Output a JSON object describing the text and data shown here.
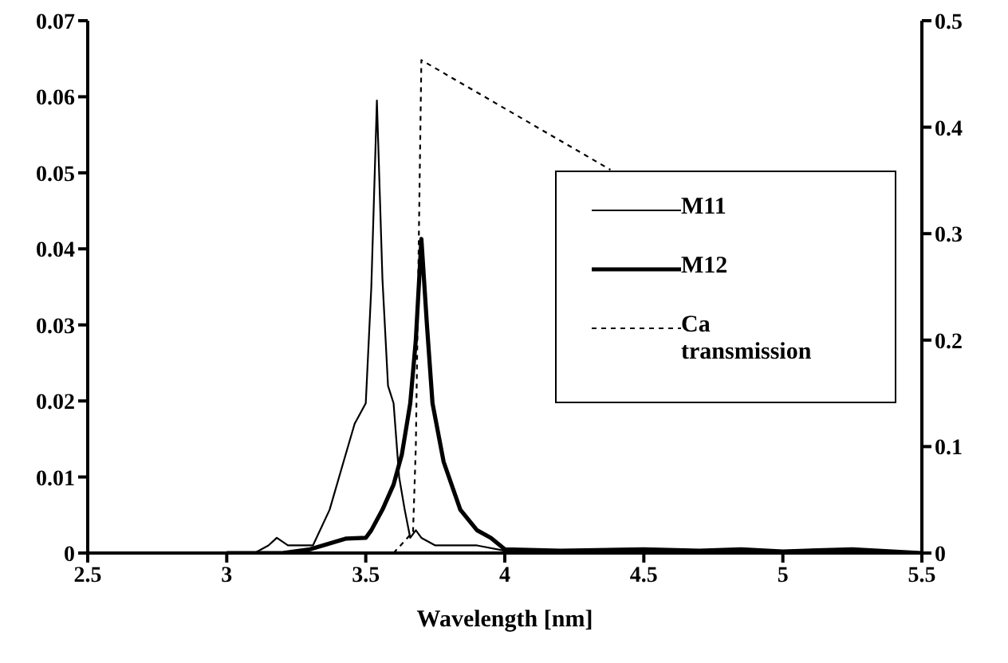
{
  "chart_data": {
    "type": "line",
    "xlabel": "Wavelength [nm]",
    "xlim": [
      2.5,
      5.5
    ],
    "xticks": [
      2.5,
      3,
      3.5,
      4,
      4.5,
      5,
      5.5
    ],
    "ylim": [
      0,
      0.07
    ],
    "yticks": [
      0,
      0.01,
      0.02,
      0.03,
      0.04,
      0.05,
      0.06,
      0.07
    ],
    "y2lim": [
      0,
      0.5
    ],
    "y2ticks": [
      0,
      0.1,
      0.2,
      0.3,
      0.4,
      0.5
    ],
    "legend": "right",
    "grid": false,
    "marker": "none",
    "series": [
      {
        "name": "M11",
        "color": "#000000",
        "line_style": "solid",
        "x": [
          3.0,
          3.1,
          3.15,
          3.18,
          3.22,
          3.26,
          3.31,
          3.37,
          3.42,
          3.46,
          3.5,
          3.52,
          3.54,
          3.56,
          3.58,
          3.6,
          3.62,
          3.64,
          3.66,
          3.68,
          3.7,
          3.75,
          3.8,
          3.9,
          4.0,
          4.2,
          4.5,
          5.0,
          5.5
        ],
        "values": [
          0,
          0,
          0.001,
          0.002,
          0.001,
          0.001,
          0.001,
          0.0057,
          0.012,
          0.017,
          0.0197,
          0.035,
          0.0595,
          0.036,
          0.022,
          0.0197,
          0.01,
          0.0057,
          0.002,
          0.003,
          0.002,
          0.001,
          0.001,
          0.001,
          0.0003,
          0,
          0,
          0,
          0
        ]
      },
      {
        "name": "M12",
        "color": "#000000",
        "line_style": "solid",
        "x": [
          3.0,
          3.2,
          3.3,
          3.43,
          3.5,
          3.52,
          3.56,
          3.6,
          3.63,
          3.66,
          3.68,
          3.7,
          3.72,
          3.74,
          3.78,
          3.84,
          3.9,
          3.95,
          4.0,
          4.2,
          4.5,
          4.7,
          4.85,
          5.0,
          5.25,
          5.5
        ],
        "values": [
          0,
          0,
          0.0005,
          0.0019,
          0.002,
          0.003,
          0.0057,
          0.009,
          0.013,
          0.0197,
          0.028,
          0.0413,
          0.03,
          0.0197,
          0.012,
          0.0057,
          0.003,
          0.002,
          0.0005,
          0.0003,
          0.0005,
          0.0003,
          0.0005,
          0.0002,
          0.0005,
          0
        ]
      },
      {
        "name": "Ca transmission",
        "color": "#000000",
        "line_style": "dotted",
        "axis": "y2",
        "x": [
          3.6,
          3.67,
          3.68,
          3.7,
          4.38
        ],
        "values": [
          0,
          0.02,
          0.1,
          0.463,
          0.36
        ]
      }
    ]
  }
}
